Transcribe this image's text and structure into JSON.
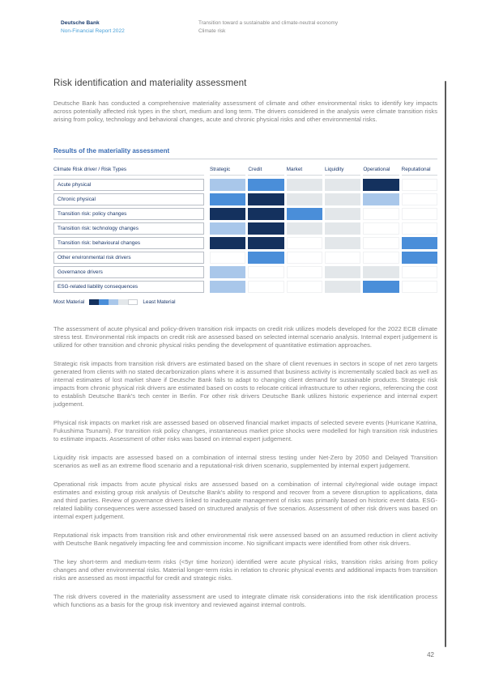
{
  "header": {
    "brand_line1": "Deutsche Bank",
    "brand_line2": "Non-Financial Report 2022",
    "context_line1": "Transition toward a sustainable and climate-neutral economy",
    "context_line2": "Climate risk"
  },
  "title": "Risk identification and materiality assessment",
  "intro": "Deutsche Bank has conducted a comprehensive materiality assessment of climate and other environmental risks to identify key impacts across potentially affected risk types in the short, medium and long term. The drivers considered in the analysis were climate transition risks arising from policy, technology and behavioral changes, acute and chronic physical risks and other environmental risks.",
  "chart_data": {
    "type": "heatmap",
    "title": "Results of the materiality assessment",
    "corner_label": "Climate Risk driver / Risk Types",
    "x_categories": [
      "Strategic",
      "Credit",
      "Market",
      "Liquidity",
      "Operational",
      "Reputational"
    ],
    "y_categories": [
      "Acute physical",
      "Chronic physical",
      "Transition risk: policy changes",
      "Transition risk: technology changes",
      "Transition risk: behavioural changes",
      "Other environmental risk drivers",
      "Governance drivers",
      "ESG-related liability consequences"
    ],
    "values": [
      [
        2,
        3,
        1,
        1,
        4,
        0
      ],
      [
        3,
        4,
        1,
        1,
        2,
        0
      ],
      [
        4,
        4,
        3,
        1,
        0,
        0
      ],
      [
        2,
        4,
        1,
        1,
        0,
        0
      ],
      [
        4,
        4,
        0,
        1,
        0,
        3
      ],
      [
        0,
        3,
        0,
        0,
        0,
        3
      ],
      [
        2,
        0,
        0,
        1,
        1,
        0
      ],
      [
        2,
        0,
        0,
        1,
        3,
        0
      ]
    ],
    "scale_note": "4 = most material, 0 = least material",
    "level_colors": [
      "#ffffff",
      "#e3e7ea",
      "#a9c7ea",
      "#4a8ed9",
      "#14315e"
    ],
    "legend": {
      "most_label": "Most Material",
      "least_label": "Least Material",
      "swatch_levels": [
        4,
        3,
        2,
        1,
        0
      ]
    },
    "legend_position": "bottom-left"
  },
  "paragraphs": [
    "The assessment of acute physical and policy-driven transition risk impacts on credit risk utilizes models developed for the 2022 ECB climate stress test. Environmental risk impacts on credit risk are assessed based on selected internal scenario analysis. Internal expert judgement is utilized for other transition and chronic physical risks pending the development of quantitative estimation approaches.",
    "Strategic risk impacts from transition risk drivers are estimated based on the share of client revenues in sectors in scope of net zero targets generated from clients with no stated decarbonization plans where it is assumed that business activity is incrementally scaled back as well as internal estimates of lost market share if Deutsche Bank fails to adapt to changing client demand for sustainable products. Strategic risk impacts from chronic physical risk drivers are estimated based on costs to relocate critical infrastructure to other regions, referencing the cost to establish Deutsche Bank's tech center in Berlin. For other risk drivers Deutsche Bank utilizes historic experience and internal expert judgement.",
    "Physical risk impacts on market risk are assessed based on observed financial market impacts of selected severe events (Hurricane Katrina, Fukushima Tsunami). For transition risk policy changes, instantaneous market price shocks were modelled for high transition risk industries to estimate impacts. Assessment of other risks was based on internal expert judgement.",
    "Liquidity risk impacts are assessed based on a combination of internal stress testing under Net-Zero by 2050 and Delayed Transition scenarios as well as an extreme flood scenario and a reputational-risk driven scenario, supplemented by internal expert judgement.",
    "Operational risk impacts from acute physical risks are assessed based on a combination of internal city/regional wide outage impact estimates and existing group risk analysis of Deutsche Bank's ability to respond and recover from a severe disruption to applications, data and third parties. Review of governance drivers linked to inadequate management of risks was primarily based on historic event data. ESG-related liability consequences were assessed based on structured analysis of five scenarios. Assessment of other risk drivers was based on internal expert judgement.",
    "Reputational risk impacts from transition risk and other environmental risk were assessed based on an assumed reduction in client activity with Deutsche Bank negatively impacting fee and commission income. No significant impacts were identified from other risk drivers.",
    "The key short-term and medium-term risks (<5yr time horizon) identified were acute physical risks, transition risks arising from policy changes and other environmental risks. Material longer-term risks in relation to chronic physical events and additional impacts from transition risks are assessed as most impactful for credit and strategic risks.",
    "The risk drivers covered in the materiality assessment are used to integrate climate risk considerations into the risk identification process which functions as a basis for the group risk inventory and reviewed against internal controls."
  ],
  "page_number": "42"
}
